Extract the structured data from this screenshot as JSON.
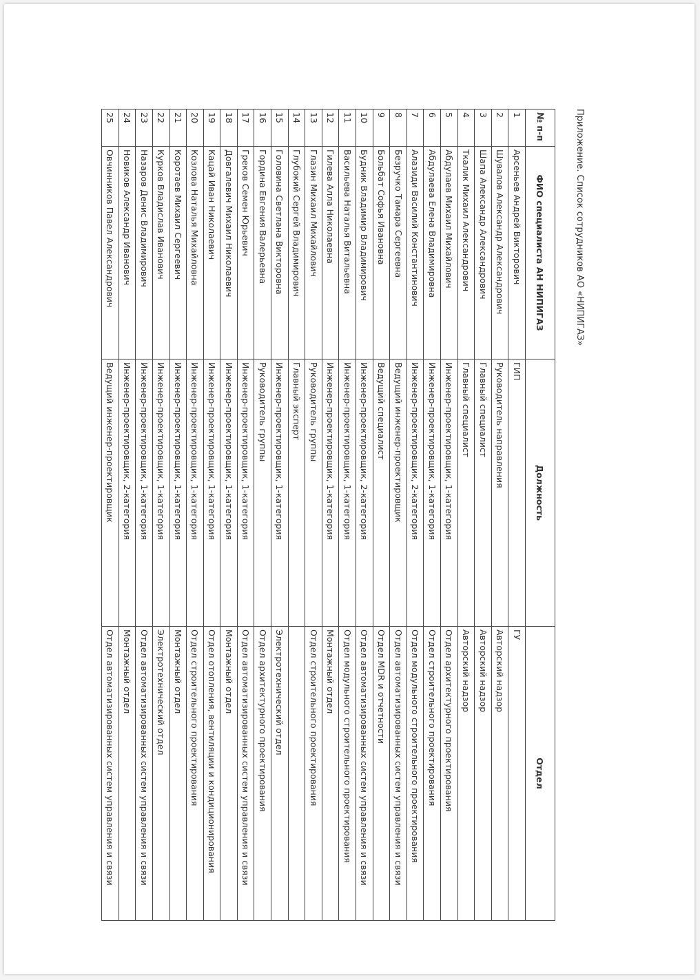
{
  "caption": "Приложение. Список сотрудников АО «НИПИГАЗ»",
  "table": {
    "headers": [
      "№ п-п",
      "ФИО специалиста АН НИПИГАЗ",
      "Должность",
      "Отдел"
    ],
    "rows": [
      {
        "n": "1",
        "name": "Арсеньев Андрей Викторович",
        "position": "ГИП",
        "dept": "ГУ"
      },
      {
        "n": "2",
        "name": "Шувалов Александр Александрович",
        "position": "Руководитель направления",
        "dept": "Авторский надзор"
      },
      {
        "n": "3",
        "name": "Шапа Александр Александрович",
        "position": "Главный специалист",
        "dept": "Авторский надзор"
      },
      {
        "n": "4",
        "name": "Ткалик Михаил Александрович",
        "position": "Главный специалист",
        "dept": "Авторский надзор"
      },
      {
        "n": "5",
        "name": "Абдулаев Михаил Михайлович",
        "position": "Инженер-проектировщик, 1-категория",
        "dept": "Отдел архитектурного проектирования"
      },
      {
        "n": "6",
        "name": "Абдулаева Елена Владимировна",
        "position": "Инженер-проектировщик, 1-категория",
        "dept": "Отдел строительного проектирования"
      },
      {
        "n": "7",
        "name": "Алазиди Василий Константинович",
        "position": "Инженер-проектировщик, 2-категория",
        "dept": "Отдел модульного строительного проектирования"
      },
      {
        "n": "8",
        "name": "Безручко Тамара Сергеевна",
        "position": "Ведущий инженер-проектировщик",
        "dept": "Отдел автоматизированных систем управления и связи"
      },
      {
        "n": "9",
        "name": "Больбат Софья Ивановна",
        "position": "Ведущий специалист",
        "dept": "Отдел MDR и отчетности"
      },
      {
        "n": "10",
        "name": "Будник Владимир Владимирович",
        "position": "Инженер-проектировщик, 2-категория",
        "dept": "Отдел автоматизированных систем управления и связи"
      },
      {
        "n": "11",
        "name": "Васильева Наталья Витальевна",
        "position": "Инженер-проектировщик, 1-категория",
        "dept": "Отдел модульного строительного проектирования"
      },
      {
        "n": "12",
        "name": "Гилева Алла Николаевна",
        "position": "Инженер-проектировщик, 1-категория",
        "dept": "Монтажный отдел"
      },
      {
        "n": "13",
        "name": "Глазин Михаил Михайлович",
        "position": "Руководитель группы",
        "dept": "Отдел строительного проектирования"
      },
      {
        "n": "14",
        "name": "Глубокий Сергей Владимирович",
        "position": "Главный эксперт",
        "dept": ""
      },
      {
        "n": "15",
        "name": "Головина Светлана Викторовна",
        "position": "Инженер-проектировщик, 1-категория",
        "dept": "Электротехнический отдел"
      },
      {
        "n": "16",
        "name": "Гордина Евгения Валерьевна",
        "position": "Руководитель группы",
        "dept": "Отдел архитектурного проектирования"
      },
      {
        "n": "17",
        "name": "Греков Семен Юрьевич",
        "position": "Инженер-проектировщик, 1-категория",
        "dept": "Отдел автоматизированных систем управления и связи"
      },
      {
        "n": "18",
        "name": "Довгалевич Михаил Николаевич",
        "position": "Инженер-проектировщик, 1-категория",
        "dept": "Монтажный отдел"
      },
      {
        "n": "19",
        "name": "Кацай Иван Николаевич",
        "position": "Инженер-проектировщик, 1-категория",
        "dept": "Отдел отопления, вентиляции и кондиционирования"
      },
      {
        "n": "20",
        "name": "Козлова Наталья Михайловна",
        "position": "Инженер-проектировщик, 1-категория",
        "dept": "Отдел строительного проектирования"
      },
      {
        "n": "21",
        "name": "Коротаев Михаил Сергеевич",
        "position": "Инженер-проектировщик, 1-категория",
        "dept": "Монтажный отдел"
      },
      {
        "n": "22",
        "name": "Курков Владислав Иванович",
        "position": "Инженер-проектировщик, 1-категория",
        "dept": "Электротехнический отдел"
      },
      {
        "n": "23",
        "name": "Назаров Денис Владимирович",
        "position": "Инженер-проектировщик, 1-категория",
        "dept": "Отдел автоматизированных систем управления и связи"
      },
      {
        "n": "24",
        "name": "Новиков Александр Иванович",
        "position": "Инженер-проектировщик, 2-категория",
        "dept": "Монтажный отдел"
      },
      {
        "n": "25",
        "name": "Овчинников Павел Александрович",
        "position": "Ведущий инженер-проектировщик",
        "dept": "Отдел автоматизированных систем управления и связи"
      }
    ]
  }
}
